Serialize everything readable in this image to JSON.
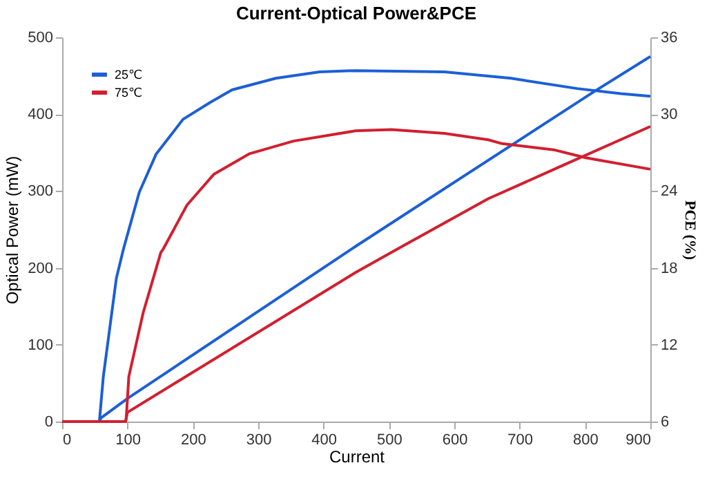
{
  "chart_data": {
    "type": "line",
    "title": "Current-Optical Power&PCE",
    "xlabel": "Current",
    "ylabel": "Optical Power  (mW)",
    "y2label": "PCE (%)",
    "xlim": [
      0,
      900
    ],
    "xticks": [
      0,
      100,
      200,
      300,
      400,
      500,
      600,
      700,
      800,
      900
    ],
    "ylim": [
      0,
      500
    ],
    "yticks": [
      0,
      100,
      200,
      300,
      400,
      500
    ],
    "y2lim": [
      6,
      36
    ],
    "y2ticks": [
      6,
      12,
      18,
      24,
      30,
      36
    ],
    "grid": false,
    "legend": "top left",
    "series": [
      {
        "name": "25℃",
        "color": "#1c5fd6",
        "x": [
          0,
          56,
          60,
          100,
          449,
          815,
          900
        ],
        "values": [
          0,
          0,
          5,
          30,
          228,
          430,
          475
        ]
      },
      {
        "name": "75℃",
        "color": "#d21f2f",
        "x": [
          0,
          97,
          100,
          449,
          516,
          652,
          760,
          900
        ],
        "values": [
          0,
          0,
          12,
          194,
          226,
          290,
          331,
          384
        ]
      },
      {
        "color": "#1c5fd6",
        "axis": "y2",
        "x": [
          57,
          63,
          83,
          94,
          118,
          144,
          185,
          226,
          260,
          327,
          394,
          449,
          585,
          687,
          788,
          855,
          900
        ],
        "values": [
          6,
          9.5,
          17.2,
          19.5,
          23.9,
          26.9,
          29.6,
          30.9,
          31.9,
          32.8,
          33.3,
          33.4,
          33.3,
          32.8,
          32.0,
          31.6,
          31.4
        ]
      },
      {
        "color": "#d21f2f",
        "axis": "y2",
        "x": [
          0,
          97,
          98,
          102,
          124,
          151,
          155,
          191,
          232,
          286,
          354,
          449,
          504,
          585,
          652,
          673,
          754,
          801,
          900
        ],
        "values": [
          6,
          6,
          6.2,
          9.5,
          14.5,
          19.2,
          19.5,
          22.9,
          25.3,
          26.9,
          27.9,
          28.7,
          28.8,
          28.5,
          28.0,
          27.7,
          27.2,
          26.6,
          25.7
        ]
      }
    ]
  }
}
